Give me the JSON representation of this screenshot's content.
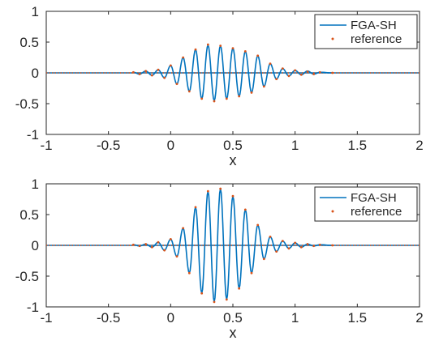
{
  "chart_data": [
    {
      "type": "line",
      "xlabel": "x",
      "ylabel": "",
      "xlim": [
        -1,
        2
      ],
      "ylim": [
        -1,
        1
      ],
      "xticks": [
        -1,
        -0.5,
        0,
        0.5,
        1,
        1.5,
        2
      ],
      "xtick_labels": [
        "-1",
        "-0.5",
        "0",
        "0.5",
        "1",
        "1.5",
        "2"
      ],
      "yticks": [
        1,
        0.5,
        0,
        -0.5,
        -1
      ],
      "ytick_labels": [
        "1",
        "0.5",
        "0",
        "-0.5",
        "-1"
      ],
      "grid": false,
      "legend_position": "top-right",
      "legend": [
        "FGA-SH",
        "reference"
      ],
      "series": [
        {
          "name": "FGA-SH",
          "style": "line",
          "color": "#0072BD",
          "x": [
            -0.3,
            -0.25,
            -0.2,
            -0.15,
            -0.1,
            -0.05,
            0.0,
            0.05,
            0.1,
            0.15,
            0.2,
            0.25,
            0.3,
            0.35,
            0.4,
            0.45,
            0.5,
            0.55,
            0.6,
            0.65,
            0.7,
            0.75,
            0.8,
            0.85,
            0.9,
            0.95,
            1.0,
            1.05,
            1.1,
            1.15,
            1.2,
            1.3
          ],
          "y": [
            0.01,
            -0.02,
            0.03,
            -0.04,
            0.05,
            -0.08,
            0.12,
            -0.18,
            0.25,
            -0.3,
            0.38,
            -0.42,
            0.45,
            -0.45,
            0.44,
            -0.42,
            0.4,
            -0.38,
            0.35,
            -0.32,
            0.28,
            -0.22,
            0.15,
            -0.1,
            0.07,
            -0.05,
            0.04,
            -0.03,
            0.03,
            -0.02,
            0.01,
            0.0
          ]
        },
        {
          "name": "reference",
          "style": "points",
          "color": "#D95319",
          "x": [
            -0.3,
            -0.25,
            -0.2,
            -0.15,
            -0.1,
            -0.05,
            0.0,
            0.05,
            0.1,
            0.15,
            0.2,
            0.25,
            0.3,
            0.35,
            0.4,
            0.45,
            0.5,
            0.55,
            0.6,
            0.65,
            0.7,
            0.75,
            0.8,
            0.85,
            0.9,
            0.95,
            1.0,
            1.05,
            1.1,
            1.15,
            1.2,
            1.3
          ],
          "y": [
            0.01,
            -0.02,
            0.03,
            -0.04,
            0.05,
            -0.08,
            0.12,
            -0.18,
            0.25,
            -0.3,
            0.38,
            -0.42,
            0.46,
            -0.46,
            0.44,
            -0.42,
            0.4,
            -0.38,
            0.35,
            -0.32,
            0.28,
            -0.22,
            0.15,
            -0.1,
            0.07,
            -0.05,
            0.04,
            -0.03,
            0.02,
            -0.02,
            0.01,
            0.0
          ]
        }
      ]
    },
    {
      "type": "line",
      "xlabel": "x",
      "ylabel": "",
      "xlim": [
        -1,
        2
      ],
      "ylim": [
        -1,
        1
      ],
      "xticks": [
        -1,
        -0.5,
        0,
        0.5,
        1,
        1.5,
        2
      ],
      "xtick_labels": [
        "-1",
        "-0.5",
        "0",
        "0.5",
        "1",
        "1.5",
        "2"
      ],
      "yticks": [
        1,
        0.5,
        0,
        -0.5,
        -1
      ],
      "ytick_labels": [
        "1",
        "0.5",
        "0",
        "-0.5",
        "-1"
      ],
      "grid": false,
      "legend_position": "top-right",
      "legend": [
        "FGA-SH",
        "reference"
      ],
      "series": [
        {
          "name": "FGA-SH",
          "style": "line",
          "color": "#0072BD",
          "x": [
            -0.3,
            -0.25,
            -0.2,
            -0.15,
            -0.1,
            -0.05,
            0.0,
            0.05,
            0.1,
            0.15,
            0.2,
            0.25,
            0.3,
            0.35,
            0.4,
            0.45,
            0.5,
            0.55,
            0.6,
            0.65,
            0.7,
            0.75,
            0.8,
            0.85,
            0.9,
            0.95,
            1.0,
            1.05,
            1.1,
            1.15,
            1.2,
            1.3
          ],
          "y": [
            0.01,
            -0.01,
            0.02,
            -0.03,
            0.05,
            -0.08,
            0.1,
            -0.18,
            0.28,
            -0.45,
            0.62,
            -0.78,
            0.88,
            -0.92,
            0.92,
            -0.88,
            0.8,
            -0.7,
            0.58,
            -0.45,
            0.33,
            -0.22,
            0.14,
            -0.1,
            0.07,
            -0.05,
            0.04,
            -0.03,
            0.02,
            -0.01,
            0.01,
            0.0
          ]
        },
        {
          "name": "reference",
          "style": "points",
          "color": "#D95319",
          "x": [
            -0.3,
            -0.25,
            -0.2,
            -0.15,
            -0.1,
            -0.05,
            0.0,
            0.05,
            0.1,
            0.15,
            0.2,
            0.25,
            0.3,
            0.35,
            0.4,
            0.45,
            0.5,
            0.55,
            0.6,
            0.65,
            0.7,
            0.75,
            0.8,
            0.85,
            0.9,
            0.95,
            1.0,
            1.05,
            1.1,
            1.15,
            1.2,
            1.3
          ],
          "y": [
            0.01,
            -0.01,
            0.02,
            -0.03,
            0.05,
            -0.08,
            0.1,
            -0.18,
            0.28,
            -0.45,
            0.62,
            -0.78,
            0.88,
            -0.92,
            0.92,
            -0.88,
            0.8,
            -0.7,
            0.58,
            -0.45,
            0.33,
            -0.22,
            0.14,
            -0.1,
            0.07,
            -0.05,
            0.04,
            -0.03,
            0.02,
            -0.01,
            0.01,
            0.0
          ]
        }
      ]
    }
  ]
}
